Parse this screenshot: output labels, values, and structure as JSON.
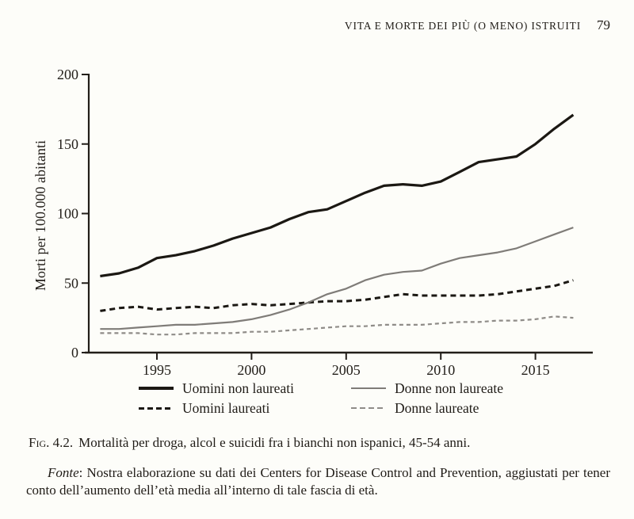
{
  "page": {
    "running_head": {
      "title": "VITA E MORTE DEI PIÙ (O MENO) ISTRUITI",
      "page_number": "79"
    },
    "figure": {
      "caption_label": "Fig. 4.2.",
      "caption_text": "Mortalità per droga, alcol e suicidi fra i bianchi non ispanici, 45-54 anni.",
      "source_label": "Fonte",
      "source_text": ": Nostra elaborazione su dati dei Centers for Disease Control and Prevention, aggiustati per tener conto dell’aumento dell’età media all’interno di tale fascia di età."
    }
  },
  "chart_data": {
    "type": "line",
    "title": "",
    "xlabel": "",
    "ylabel": "Morti per 100.000 abitanti",
    "x": [
      1992,
      1993,
      1994,
      1995,
      1996,
      1997,
      1998,
      1999,
      2000,
      2001,
      2002,
      2003,
      2004,
      2005,
      2006,
      2007,
      2008,
      2009,
      2010,
      2011,
      2012,
      2013,
      2014,
      2015,
      2016,
      2017
    ],
    "xticks": [
      1995,
      2000,
      2005,
      2010,
      2015
    ],
    "yticks": [
      0,
      50,
      100,
      150,
      200
    ],
    "xlim": [
      1991.4,
      2018.1
    ],
    "ylim": [
      0,
      200
    ],
    "grid": false,
    "legend_position": "below chart, two columns",
    "ink_color": "#221e19",
    "series": [
      {
        "name": "Uomini non laureati",
        "style": "solid",
        "color": "#1b1813",
        "width": 3.2,
        "values": [
          55,
          57,
          61,
          68,
          70,
          73,
          77,
          82,
          86,
          90,
          96,
          101,
          103,
          109,
          115,
          120,
          121,
          120,
          123,
          130,
          137,
          139,
          141,
          150,
          161,
          171
        ]
      },
      {
        "name": "Uomini laureati",
        "style": "dashed",
        "color": "#1b1813",
        "width": 3,
        "values": [
          30,
          32,
          33,
          31,
          32,
          33,
          32,
          34,
          35,
          34,
          35,
          36,
          37,
          37,
          38,
          40,
          42,
          41,
          41,
          41,
          41,
          42,
          44,
          46,
          48,
          52
        ]
      },
      {
        "name": "Donne non laureate",
        "style": "solid",
        "color": "#7f7c78",
        "width": 2.2,
        "values": [
          17,
          17,
          18,
          19,
          20,
          20,
          21,
          22,
          24,
          27,
          31,
          36,
          42,
          46,
          52,
          56,
          58,
          59,
          64,
          68,
          70,
          72,
          75,
          80,
          85,
          90
        ]
      },
      {
        "name": "Donne laureate",
        "style": "dashed",
        "color": "#8f8c88",
        "width": 2.2,
        "values": [
          14,
          14,
          14,
          13,
          13,
          14,
          14,
          14,
          15,
          15,
          16,
          17,
          18,
          19,
          19,
          20,
          20,
          20,
          21,
          22,
          22,
          23,
          23,
          24,
          26,
          25
        ]
      }
    ]
  }
}
